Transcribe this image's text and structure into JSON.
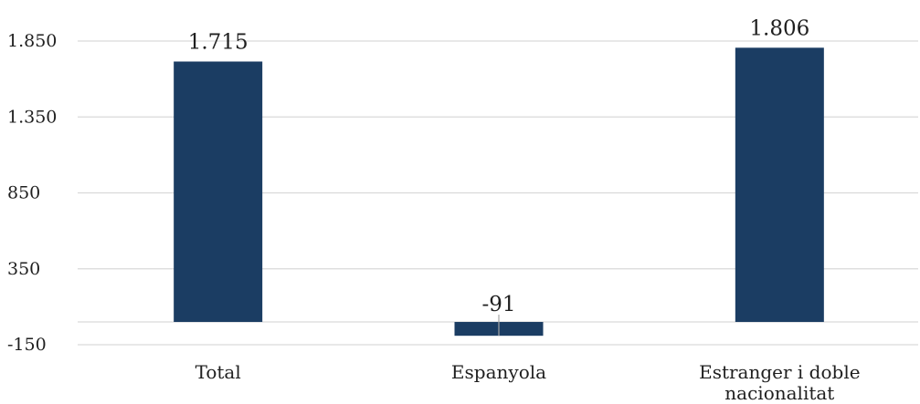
{
  "chart_data": {
    "type": "bar",
    "title": "",
    "xlabel": "",
    "ylabel": "",
    "categories": [
      "Total",
      "Espanyola",
      "Estranger i doble nacionalitat"
    ],
    "category_lines": [
      [
        "Total"
      ],
      [
        "Espanyola"
      ],
      [
        "Estranger i doble",
        "nacionalitat"
      ]
    ],
    "values": [
      1715,
      -91,
      1806
    ],
    "value_labels": [
      "1.715",
      "-91",
      "1.806"
    ],
    "yticks": [
      -150,
      350,
      850,
      1350,
      1850
    ],
    "ytick_labels": [
      "-150",
      "350",
      "850",
      "1.350",
      "1.850"
    ],
    "ylim": [
      -150,
      1850
    ],
    "grid": true,
    "legend": "none",
    "bar_color": "#1b3d63",
    "grid_color": "#d9d9d9",
    "text_color": "#1f1f1f"
  }
}
